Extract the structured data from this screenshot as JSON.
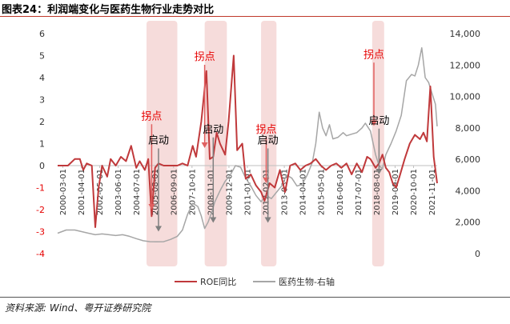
{
  "figure_title": "图表24：利润端变化与医药生物行业走势对比",
  "source_note": "资料来源: Wind、粤开证券研究院",
  "colors": {
    "roe": "#c0393b",
    "index": "#a6a6a6",
    "shade": "#f6dcdb",
    "pivot_arrow": "#e06060",
    "start_arrow": "#7f7f7f",
    "pivot_text": "#e60000",
    "start_text": "#000000",
    "left_axis_negative": "#e60000",
    "axis_text": "#333333"
  },
  "chart_data": {
    "type": "line",
    "title": "",
    "xlabel": "",
    "ylabel_left": "",
    "ylabel_right": "",
    "left_axis": {
      "ylim": [
        -4,
        6
      ],
      "ticks": [
        "6",
        "5",
        "4",
        "3",
        "2",
        "1",
        "0",
        "-1",
        "-2",
        "-3",
        "-4"
      ]
    },
    "right_axis": {
      "ylim": [
        0,
        14000
      ],
      "ticks": [
        "14,000",
        "12,000",
        "10,000",
        "8,000",
        "6,000",
        "4,000",
        "2,000",
        "0"
      ]
    },
    "x_ticks": [
      "2000-03-01",
      "2001-04-01",
      "2002-05-01",
      "2003-06-01",
      "2004-07-01",
      "2005-08-01",
      "2006-09-01",
      "2007-10-01",
      "2008-11-01",
      "2009-12-01",
      "2011-01-01",
      "2012-02-01",
      "2013-03-01",
      "2014-04-01",
      "2015-05-01",
      "2016-06-01",
      "2017-07-01",
      "2018-08-01",
      "2019-09-01",
      "2020-10-01",
      "2021-11-01"
    ],
    "x_range": [
      2000.0,
      2022.2
    ],
    "legend": {
      "position": "bottom",
      "items": [
        "ROE同比",
        "医药生物-右轴"
      ]
    },
    "series": [
      {
        "name": "ROE同比",
        "axis": "left",
        "points": [
          [
            2000.0,
            0.0
          ],
          [
            2000.6,
            0.0
          ],
          [
            2001.0,
            0.3
          ],
          [
            2001.3,
            0.3
          ],
          [
            2001.5,
            -0.2
          ],
          [
            2001.7,
            0.1
          ],
          [
            2002.0,
            0.0
          ],
          [
            2002.2,
            -2.8
          ],
          [
            2002.4,
            -1.0
          ],
          [
            2002.6,
            0.0
          ],
          [
            2002.9,
            -0.5
          ],
          [
            2003.1,
            0.3
          ],
          [
            2003.4,
            0.0
          ],
          [
            2003.7,
            0.4
          ],
          [
            2004.0,
            0.2
          ],
          [
            2004.3,
            0.9
          ],
          [
            2004.6,
            -0.1
          ],
          [
            2004.8,
            0.2
          ],
          [
            2005.1,
            -0.2
          ],
          [
            2005.3,
            0.3
          ],
          [
            2005.5,
            -2.3
          ],
          [
            2005.7,
            -0.1
          ],
          [
            2005.9,
            0.1
          ],
          [
            2006.2,
            0.0
          ],
          [
            2006.5,
            0.0
          ],
          [
            2006.8,
            0.0
          ],
          [
            2007.0,
            0.0
          ],
          [
            2007.3,
            0.1
          ],
          [
            2007.6,
            0.0
          ],
          [
            2007.9,
            0.9
          ],
          [
            2008.1,
            0.4
          ],
          [
            2008.4,
            2.0
          ],
          [
            2008.7,
            4.3
          ],
          [
            2008.9,
            0.3
          ],
          [
            2009.1,
            0.4
          ],
          [
            2009.3,
            1.5
          ],
          [
            2009.5,
            1.0
          ],
          [
            2009.8,
            0.5
          ],
          [
            2010.0,
            2.0
          ],
          [
            2010.3,
            5.0
          ],
          [
            2010.5,
            0.7
          ],
          [
            2010.8,
            1.0
          ],
          [
            2011.0,
            -0.6
          ],
          [
            2011.3,
            -0.4
          ],
          [
            2011.6,
            -0.9
          ],
          [
            2011.9,
            -1.2
          ],
          [
            2012.1,
            -1.6
          ],
          [
            2012.4,
            -0.8
          ],
          [
            2012.7,
            -1.0
          ],
          [
            2013.0,
            -0.2
          ],
          [
            2013.3,
            -1.2
          ],
          [
            2013.6,
            0.0
          ],
          [
            2013.9,
            0.1
          ],
          [
            2014.2,
            -0.2
          ],
          [
            2014.5,
            0.0
          ],
          [
            2014.8,
            0.1
          ],
          [
            2015.1,
            0.3
          ],
          [
            2015.4,
            0.0
          ],
          [
            2015.7,
            -0.2
          ],
          [
            2016.0,
            0.0
          ],
          [
            2016.3,
            0.1
          ],
          [
            2016.6,
            -0.1
          ],
          [
            2016.9,
            0.1
          ],
          [
            2017.2,
            -0.4
          ],
          [
            2017.5,
            0.1
          ],
          [
            2017.8,
            -0.3
          ],
          [
            2018.1,
            0.4
          ],
          [
            2018.3,
            0.3
          ],
          [
            2018.6,
            -0.1
          ],
          [
            2018.8,
            0.1
          ],
          [
            2019.0,
            0.5
          ],
          [
            2019.2,
            -0.1
          ],
          [
            2019.4,
            -0.3
          ],
          [
            2019.6,
            -0.8
          ],
          [
            2019.8,
            -1.0
          ],
          [
            2020.0,
            -0.5
          ],
          [
            2020.3,
            0.3
          ],
          [
            2020.6,
            1.0
          ],
          [
            2020.9,
            1.4
          ],
          [
            2021.2,
            1.2
          ],
          [
            2021.4,
            1.5
          ],
          [
            2021.6,
            1.1
          ],
          [
            2021.8,
            3.6
          ],
          [
            2022.0,
            0.4
          ],
          [
            2022.2,
            -0.8
          ]
        ]
      },
      {
        "name": "医药生物-右轴",
        "axis": "right",
        "points": [
          [
            2000.0,
            1300
          ],
          [
            2000.5,
            1500
          ],
          [
            2001.0,
            1500
          ],
          [
            2001.4,
            1400
          ],
          [
            2001.8,
            1300
          ],
          [
            2002.2,
            1200
          ],
          [
            2002.6,
            1250
          ],
          [
            2003.0,
            1200
          ],
          [
            2003.4,
            1150
          ],
          [
            2003.8,
            1200
          ],
          [
            2004.2,
            1100
          ],
          [
            2004.6,
            950
          ],
          [
            2005.0,
            820
          ],
          [
            2005.4,
            760
          ],
          [
            2005.8,
            750
          ],
          [
            2006.2,
            760
          ],
          [
            2006.6,
            900
          ],
          [
            2007.0,
            1100
          ],
          [
            2007.3,
            1500
          ],
          [
            2007.6,
            2500
          ],
          [
            2007.9,
            3200
          ],
          [
            2008.2,
            3000
          ],
          [
            2008.4,
            2400
          ],
          [
            2008.6,
            1600
          ],
          [
            2008.8,
            2000
          ],
          [
            2009.0,
            2600
          ],
          [
            2009.2,
            3300
          ],
          [
            2009.5,
            4000
          ],
          [
            2009.8,
            4600
          ],
          [
            2010.1,
            5000
          ],
          [
            2010.4,
            5600
          ],
          [
            2010.7,
            5500
          ],
          [
            2011.0,
            4800
          ],
          [
            2011.3,
            4300
          ],
          [
            2011.6,
            3700
          ],
          [
            2011.9,
            3300
          ],
          [
            2012.2,
            3700
          ],
          [
            2012.5,
            3500
          ],
          [
            2012.8,
            3900
          ],
          [
            2013.1,
            4300
          ],
          [
            2013.4,
            5000
          ],
          [
            2013.7,
            4800
          ],
          [
            2014.0,
            4300
          ],
          [
            2014.3,
            4400
          ],
          [
            2014.6,
            5000
          ],
          [
            2014.9,
            5800
          ],
          [
            2015.1,
            7000
          ],
          [
            2015.3,
            9000
          ],
          [
            2015.5,
            8000
          ],
          [
            2015.7,
            7500
          ],
          [
            2015.9,
            8200
          ],
          [
            2016.1,
            7300
          ],
          [
            2016.4,
            7400
          ],
          [
            2016.7,
            7700
          ],
          [
            2016.9,
            7500
          ],
          [
            2017.2,
            7600
          ],
          [
            2017.5,
            7700
          ],
          [
            2017.8,
            8000
          ],
          [
            2018.0,
            8300
          ],
          [
            2018.3,
            7800
          ],
          [
            2018.6,
            6300
          ],
          [
            2018.8,
            5600
          ],
          [
            2019.0,
            5400
          ],
          [
            2019.2,
            6300
          ],
          [
            2019.5,
            7000
          ],
          [
            2019.8,
            7800
          ],
          [
            2020.1,
            8800
          ],
          [
            2020.4,
            11000
          ],
          [
            2020.7,
            11400
          ],
          [
            2020.9,
            11300
          ],
          [
            2021.1,
            12000
          ],
          [
            2021.3,
            13100
          ],
          [
            2021.5,
            11200
          ],
          [
            2021.7,
            10900
          ],
          [
            2021.9,
            10200
          ],
          [
            2022.1,
            9500
          ],
          [
            2022.2,
            8100
          ]
        ]
      }
    ],
    "shaded_periods": [
      [
        2005.2,
        2007.0
      ],
      [
        2008.6,
        2009.9
      ],
      [
        2011.9,
        2012.8
      ],
      [
        2018.4,
        2019.1
      ]
    ],
    "annotations": [
      {
        "label": "拐点",
        "kind": "pivot",
        "x": 2005.5,
        "label_y": 2.1,
        "arrow_to_y": -2.0
      },
      {
        "label": "启动",
        "kind": "start",
        "x": 2005.9,
        "label_y": 1.0,
        "arrow_to_y": -3.0
      },
      {
        "label": "拐点",
        "kind": "pivot",
        "x": 2008.6,
        "label_y": 4.8,
        "arrow_to_y": 0.8
      },
      {
        "label": "启动",
        "kind": "start",
        "x": 2009.1,
        "label_y": 1.5,
        "arrow_to_y": -2.6
      },
      {
        "label": "拐点",
        "kind": "pivot",
        "x": 2012.2,
        "label_y": 1.5,
        "arrow_to_y": -0.8
      },
      {
        "label": "启动",
        "kind": "start",
        "x": 2012.3,
        "label_y": 1.0,
        "arrow_to_y": -2.6
      },
      {
        "label": "拐点",
        "kind": "pivot",
        "x": 2018.5,
        "label_y": 4.9,
        "arrow_to_y": 1.8
      },
      {
        "label": "启动",
        "kind": "start",
        "x": 2018.8,
        "label_y": 1.9,
        "arrow_to_y": -0.4
      }
    ]
  }
}
